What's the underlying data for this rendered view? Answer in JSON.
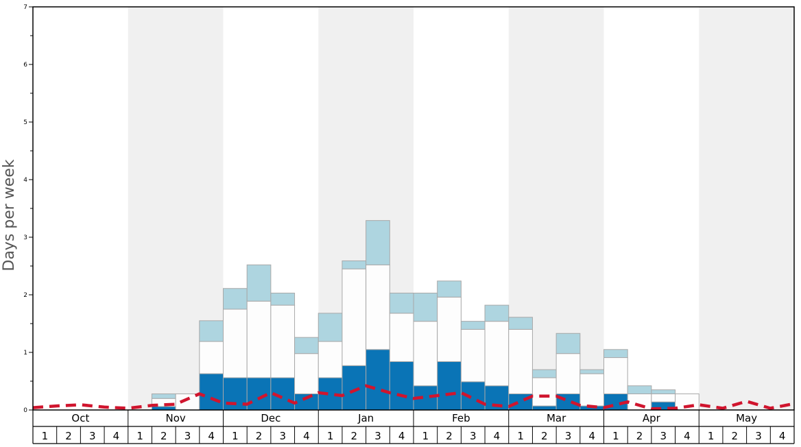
{
  "chart_data": {
    "type": "bar",
    "ylabel": "Days per week",
    "ylim": [
      0,
      7
    ],
    "yticks": [
      0,
      1,
      2,
      3,
      4,
      5,
      6,
      7
    ],
    "grid": false,
    "months": [
      "Oct",
      "Nov",
      "Dec",
      "Jan",
      "Feb",
      "Mar",
      "Apr",
      "May"
    ],
    "weeks_per_month": [
      "1",
      "2",
      "3",
      "4"
    ],
    "stacked": true,
    "series": [
      {
        "values": [
          0,
          0,
          0,
          0,
          0,
          0.06,
          0,
          0.63,
          0.56,
          0.56,
          0.56,
          0.28,
          0.56,
          0.77,
          1.05,
          0.84,
          0.42,
          0.84,
          0.49,
          0.42,
          0.28,
          0.07,
          0.28,
          0.07,
          0.28,
          0,
          0.14,
          0,
          0,
          0,
          0,
          0
        ]
      },
      {
        "values": [
          0,
          0,
          0,
          0,
          0,
          0.14,
          0.28,
          0.56,
          1.19,
          1.33,
          1.26,
          0.7,
          0.63,
          1.68,
          1.47,
          0.84,
          1.12,
          1.12,
          0.91,
          1.12,
          1.12,
          0.49,
          0.7,
          0.56,
          0.63,
          0.28,
          0.14,
          0.28,
          0,
          0,
          0,
          0
        ]
      },
      {
        "values": [
          0,
          0,
          0,
          0,
          0,
          0.08,
          0,
          0.36,
          0.36,
          0.63,
          0.21,
          0.28,
          0.49,
          0.14,
          0.77,
          0.35,
          0.49,
          0.28,
          0.14,
          0.28,
          0.21,
          0.14,
          0.35,
          0.07,
          0.14,
          0.14,
          0.07,
          0,
          0,
          0,
          0,
          0
        ]
      }
    ],
    "line": {
      "style": "dashed",
      "values": [
        0.04,
        0.07,
        0.09,
        0.05,
        0.03,
        0.08,
        0.1,
        0.28,
        0.12,
        0.1,
        0.3,
        0.12,
        0.3,
        0.25,
        0.42,
        0.3,
        0.2,
        0.25,
        0.3,
        0.1,
        0.06,
        0.24,
        0.24,
        0.08,
        0.04,
        0.14,
        0.02,
        0.03,
        0.09,
        0.03,
        0.15,
        0.03,
        0.11
      ]
    },
    "colors": {
      "series_0": "#0a74b6",
      "series_1": "#fdfdfd",
      "series_2": "#aed5e0",
      "line": "#d0152e",
      "band": "#f0f0f0",
      "bar_edge": "#a8a8a8",
      "axis": "#000000",
      "ylabel": "#555555"
    }
  }
}
